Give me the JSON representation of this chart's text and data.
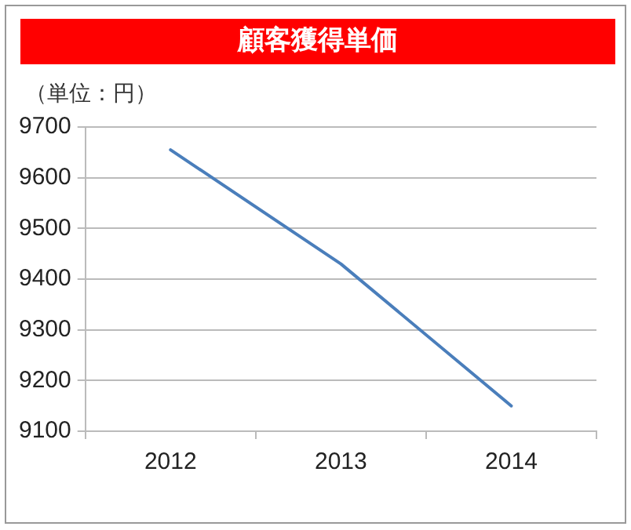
{
  "chart_data": {
    "type": "line",
    "title": "顧客獲得単価",
    "ylabel": "（単位：円）",
    "categories": [
      "2012",
      "2013",
      "2014"
    ],
    "series": [
      {
        "color": "#4a7ebb",
        "values": [
          9655,
          9430,
          9150
        ]
      }
    ],
    "ylim": [
      9100,
      9700
    ],
    "yticks": [
      9100,
      9200,
      9300,
      9400,
      9500,
      9600,
      9700
    ],
    "grid": "y",
    "legend": false,
    "marker": "none",
    "line_style": "solid"
  }
}
